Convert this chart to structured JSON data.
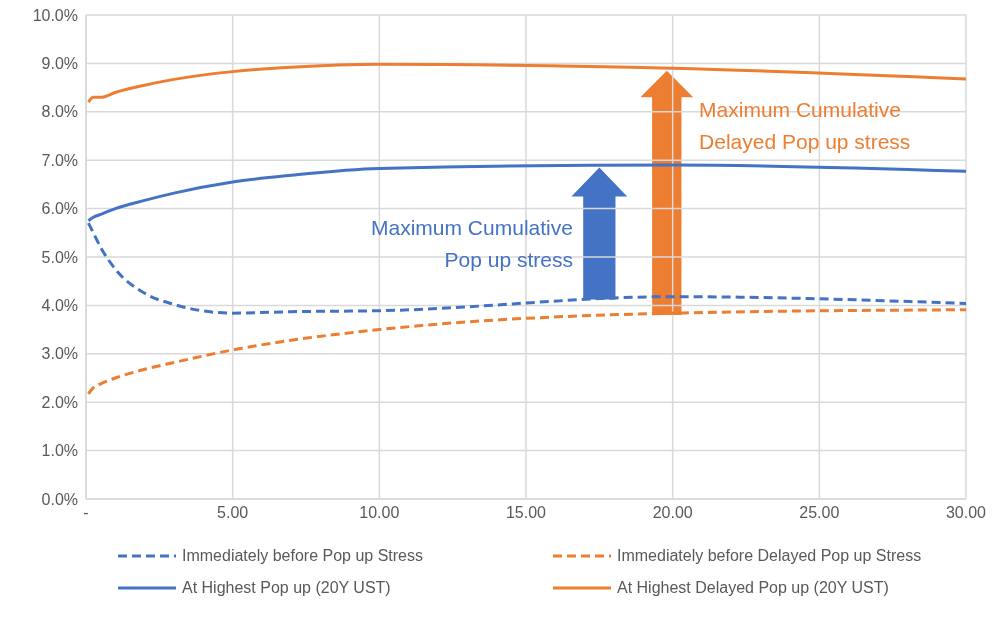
{
  "chart_data": {
    "type": "line",
    "x": [
      0.083,
      0.25,
      0.5,
      1,
      2,
      3,
      5,
      7,
      10,
      20,
      30
    ],
    "series": [
      {
        "name": "Immediately before Pop up Stress",
        "color": "#4472c4",
        "line_style": "dashed",
        "values": [
          5.7,
          5.5,
          5.2,
          4.75,
          4.25,
          4.02,
          3.84,
          3.87,
          3.89,
          4.18,
          4.04
        ]
      },
      {
        "name": "Immediately before Delayed Pop up Stress",
        "color": "#ed7d31",
        "line_style": "dashed",
        "values": [
          2.17,
          2.3,
          2.38,
          2.5,
          2.68,
          2.82,
          3.08,
          3.28,
          3.5,
          3.84,
          3.91
        ]
      },
      {
        "name": "At Highest Pop up (20Y UST)",
        "color": "#4472c4",
        "line_style": "solid",
        "values": [
          5.75,
          5.82,
          5.88,
          6.0,
          6.17,
          6.32,
          6.55,
          6.69,
          6.83,
          6.9,
          6.77
        ]
      },
      {
        "name": "At Highest Delayed Pop up (20Y UST)",
        "color": "#ed7d31",
        "line_style": "solid",
        "values": [
          8.2,
          8.3,
          8.3,
          8.4,
          8.55,
          8.67,
          8.83,
          8.92,
          8.98,
          8.9,
          8.68
        ]
      }
    ],
    "xlim": [
      0,
      30
    ],
    "xticks": [
      {
        "value": 0,
        "label": "-"
      },
      {
        "value": 5,
        "label": "5.00"
      },
      {
        "value": 10,
        "label": "10.00"
      },
      {
        "value": 15,
        "label": "15.00"
      },
      {
        "value": 20,
        "label": "20.00"
      },
      {
        "value": 25,
        "label": "25.00"
      },
      {
        "value": 30,
        "label": "30.00"
      }
    ],
    "ylim": [
      0,
      10
    ],
    "yticks": [
      {
        "value": 0,
        "label": "0.0%"
      },
      {
        "value": 1,
        "label": "1.0%"
      },
      {
        "value": 2,
        "label": "2.0%"
      },
      {
        "value": 3,
        "label": "3.0%"
      },
      {
        "value": 4,
        "label": "4.0%"
      },
      {
        "value": 5,
        "label": "5.0%"
      },
      {
        "value": 6,
        "label": "6.0%"
      },
      {
        "value": 7,
        "label": "7.0%"
      },
      {
        "value": 8,
        "label": "8.0%"
      },
      {
        "value": 9,
        "label": "9.0%"
      },
      {
        "value": 10,
        "label": "10.0%"
      }
    ],
    "annotations": [
      "Maximum Cumulative\nPop up stress",
      "Maximum Cumulative\nDelayed Pop up stress"
    ],
    "grid": true,
    "legend": "bottom",
    "marker": "none"
  }
}
